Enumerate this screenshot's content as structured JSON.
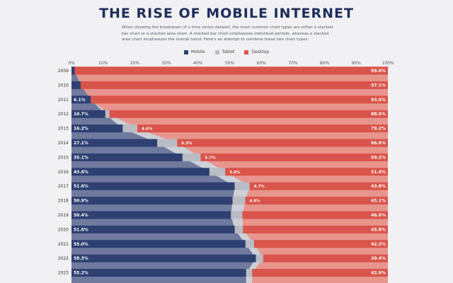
{
  "title": "THE RISE OF MOBILE INTERNET",
  "subtitle": "When showing the breakdown of a time series dataset, the most common chart types are either a stacked bar chart or a stacked area chart. A stacked bar chart emphasizes individual periods, whereas a stacked area chart emphasizes the overall trend. Here's an attempt to combine these two chart types.",
  "legend": [
    {
      "label": "Mobile",
      "color": "#2e3f72"
    },
    {
      "label": "Tablet",
      "color": "#b9bcc4"
    },
    {
      "label": "Desktop",
      "color": "#d9544a"
    }
  ],
  "chart_data": {
    "type": "area",
    "orientation": "horizontal",
    "stacked": true,
    "categories": [
      "2009",
      "2010",
      "2011",
      "2012",
      "2013",
      "2014",
      "2015",
      "2016",
      "2017",
      "2018",
      "2019",
      "2020",
      "2021",
      "2022",
      "2023"
    ],
    "series": [
      {
        "name": "Mobile",
        "values": [
          1.0,
          2.9,
          6.1,
          10.7,
          16.2,
          27.1,
          35.1,
          43.6,
          51.6,
          50.9,
          50.4,
          51.6,
          55.0,
          58.3,
          55.2
        ]
      },
      {
        "name": "Tablet",
        "values": [
          0,
          0,
          0,
          1.3,
          4.6,
          6.3,
          5.7,
          5.0,
          4.7,
          4.0,
          3.6,
          2.6,
          2.7,
          2.3,
          1.9
        ]
      },
      {
        "name": "Desktop",
        "values": [
          99.0,
          97.1,
          93.9,
          88.0,
          79.2,
          66.6,
          59.2,
          51.4,
          43.8,
          45.1,
          46.0,
          45.8,
          42.3,
          39.4,
          42.9
        ]
      }
    ],
    "mobile_labels": [
      "",
      "",
      "6.1%",
      "10.7%",
      "16.2%",
      "27.1%",
      "35.1%",
      "43.6%",
      "51.6%",
      "50.9%",
      "50.4%",
      "51.6%",
      "55.0%",
      "58.3%",
      "55.2%"
    ],
    "tablet_labels": [
      "",
      "",
      "",
      "",
      "4.6%",
      "6.3%",
      "5.7%",
      "5.0%",
      "4.7%",
      "4.0%",
      "",
      "",
      "",
      "",
      ""
    ],
    "desktop_labels": [
      "99.0%",
      "97.1%",
      "93.9%",
      "88.0%",
      "79.2%",
      "66.6%",
      "59.2%",
      "51.4%",
      "43.8%",
      "45.1%",
      "46.0%",
      "45.8%",
      "42.3%",
      "39.4%",
      "42.9%"
    ],
    "xlim": [
      0,
      100
    ],
    "xticks": [
      "0%",
      "10%",
      "20%",
      "30%",
      "40%",
      "50%",
      "60%",
      "70%",
      "80%",
      "90%",
      "100%"
    ],
    "legend_position": "top-center"
  }
}
